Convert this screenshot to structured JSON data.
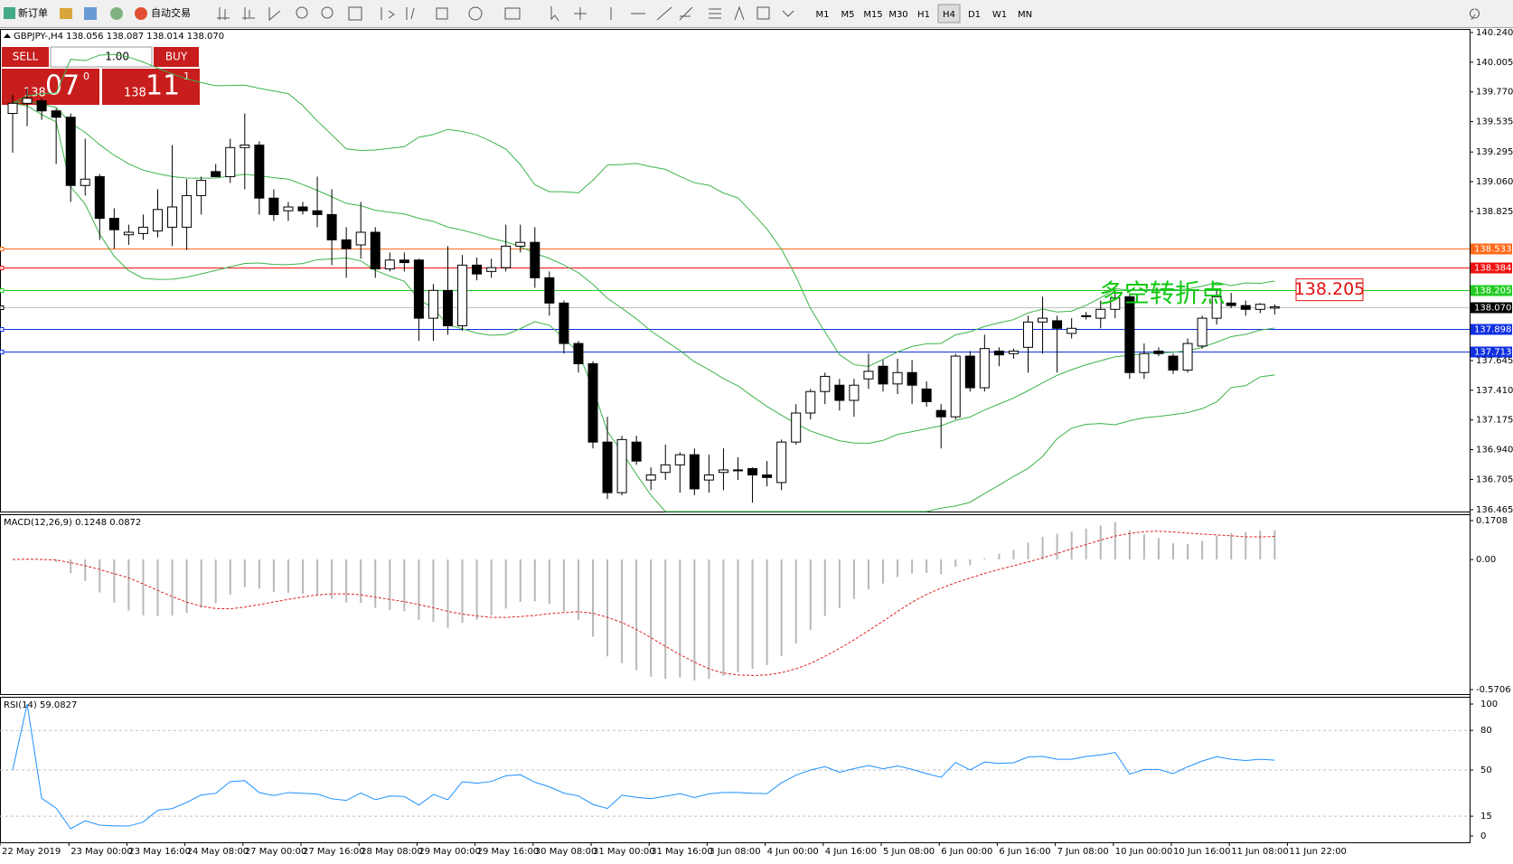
{
  "toolbar": {
    "new_order": "新订单",
    "auto_trading": "自动交易",
    "timeframes": [
      "M1",
      "M5",
      "M15",
      "M30",
      "H1",
      "H4",
      "D1",
      "W1",
      "MN"
    ],
    "active_timeframe": "H4"
  },
  "chart": {
    "symbol_header": "GBPJPY-,H4  138.056 138.087 138.014 138.070",
    "trade_panel": {
      "sell": "SELL",
      "buy": "BUY",
      "lots": "1.00",
      "bid_big": "138",
      "bid_main": "07",
      "bid_small": "0",
      "ask_big": "138",
      "ask_main": "11",
      "ask_small": "1"
    },
    "ylim": [
      136.465,
      140.24
    ],
    "yticks": [
      {
        "value": 140.24,
        "label": "140.240"
      },
      {
        "value": 140.005,
        "label": "140.005"
      },
      {
        "value": 139.77,
        "label": "139.770"
      },
      {
        "value": 139.535,
        "label": "139.535"
      },
      {
        "value": 139.295,
        "label": "139.295"
      },
      {
        "value": 139.06,
        "label": "139.060"
      },
      {
        "value": 138.825,
        "label": "138.825"
      },
      {
        "value": 137.645,
        "label": "137.645"
      },
      {
        "value": 137.41,
        "label": "137.410"
      },
      {
        "value": 137.175,
        "label": "137.175"
      },
      {
        "value": 136.94,
        "label": "136.940"
      },
      {
        "value": 136.705,
        "label": "136.705"
      },
      {
        "value": 136.465,
        "label": "136.465"
      }
    ],
    "levels": [
      {
        "value": 138.533,
        "label": "138.533",
        "color": "#ff6a1a"
      },
      {
        "value": 138.384,
        "label": "138.384",
        "color": "#ee1111"
      },
      {
        "value": 138.205,
        "label": "138.205",
        "color": "#22cc22"
      },
      {
        "value": 138.07,
        "label": "138.070",
        "color": "#000000"
      },
      {
        "value": 137.898,
        "label": "137.898",
        "color": "#1030e0"
      },
      {
        "value": 137.713,
        "label": "137.713",
        "color": "#1030e0"
      }
    ],
    "annotation": "多空转折点",
    "annotation_price": {
      "value": 138.205,
      "label": "138.205"
    },
    "candles": [
      [
        139.6,
        139.75,
        139.29,
        139.68
      ],
      [
        139.68,
        139.8,
        139.5,
        139.72
      ],
      [
        139.7,
        139.72,
        139.55,
        139.62
      ],
      [
        139.62,
        139.64,
        139.2,
        139.57
      ],
      [
        139.57,
        139.6,
        138.9,
        139.03
      ],
      [
        139.03,
        139.4,
        138.95,
        139.08
      ],
      [
        139.1,
        139.12,
        138.6,
        138.77
      ],
      [
        138.77,
        138.85,
        138.53,
        138.68
      ],
      [
        138.64,
        138.72,
        138.56,
        138.66
      ],
      [
        138.65,
        138.8,
        138.6,
        138.7
      ],
      [
        138.67,
        139.0,
        138.62,
        138.84
      ],
      [
        138.7,
        139.35,
        138.55,
        138.86
      ],
      [
        138.7,
        139.08,
        138.52,
        138.95
      ],
      [
        138.95,
        139.1,
        138.8,
        139.07
      ],
      [
        139.14,
        139.2,
        139.1,
        139.1
      ],
      [
        139.1,
        139.4,
        139.05,
        139.33
      ],
      [
        139.33,
        139.6,
        139.0,
        139.35
      ],
      [
        139.35,
        139.38,
        138.8,
        138.93
      ],
      [
        138.93,
        139.0,
        138.75,
        138.8
      ],
      [
        138.83,
        138.9,
        138.75,
        138.86
      ],
      [
        138.86,
        138.9,
        138.8,
        138.83
      ],
      [
        138.83,
        139.1,
        138.7,
        138.8
      ],
      [
        138.8,
        139.0,
        138.4,
        138.6
      ],
      [
        138.6,
        138.7,
        138.3,
        138.53
      ],
      [
        138.56,
        138.9,
        138.45,
        138.66
      ],
      [
        138.66,
        138.7,
        138.3,
        138.37
      ],
      [
        138.37,
        138.5,
        138.35,
        138.44
      ],
      [
        138.44,
        138.5,
        138.35,
        138.42
      ],
      [
        138.44,
        138.45,
        137.8,
        137.98
      ],
      [
        137.98,
        138.25,
        137.8,
        138.2
      ],
      [
        138.2,
        138.55,
        137.85,
        137.92
      ],
      [
        137.92,
        138.48,
        137.88,
        138.4
      ],
      [
        138.4,
        138.46,
        138.28,
        138.33
      ],
      [
        138.35,
        138.45,
        138.3,
        138.38
      ],
      [
        138.38,
        138.72,
        138.35,
        138.55
      ],
      [
        138.55,
        138.72,
        138.5,
        138.58
      ],
      [
        138.58,
        138.7,
        138.22,
        138.3
      ],
      [
        138.3,
        138.35,
        138.0,
        138.1
      ],
      [
        138.1,
        138.12,
        137.7,
        137.78
      ],
      [
        137.78,
        137.8,
        137.55,
        137.62
      ],
      [
        137.62,
        137.64,
        136.95,
        137.0
      ],
      [
        137.0,
        137.2,
        136.55,
        136.6
      ],
      [
        136.6,
        137.05,
        136.58,
        137.02
      ],
      [
        137.0,
        137.05,
        136.82,
        136.85
      ],
      [
        136.7,
        136.8,
        136.62,
        136.74
      ],
      [
        136.76,
        136.98,
        136.7,
        136.82
      ],
      [
        136.82,
        136.92,
        136.6,
        136.9
      ],
      [
        136.9,
        136.95,
        136.58,
        136.63
      ],
      [
        136.7,
        136.9,
        136.6,
        136.74
      ],
      [
        136.76,
        136.95,
        136.62,
        136.78
      ],
      [
        136.78,
        136.88,
        136.7,
        136.78
      ],
      [
        136.79,
        136.8,
        136.52,
        136.74
      ],
      [
        136.74,
        136.85,
        136.65,
        136.72
      ],
      [
        136.68,
        137.02,
        136.62,
        137.0
      ],
      [
        137.0,
        137.3,
        136.98,
        137.23
      ],
      [
        137.23,
        137.42,
        137.18,
        137.4
      ],
      [
        137.4,
        137.55,
        137.3,
        137.52
      ],
      [
        137.45,
        137.5,
        137.25,
        137.33
      ],
      [
        137.33,
        137.5,
        137.2,
        137.45
      ],
      [
        137.5,
        137.7,
        137.42,
        137.56
      ],
      [
        137.6,
        137.65,
        137.4,
        137.46
      ],
      [
        137.46,
        137.66,
        137.38,
        137.55
      ],
      [
        137.55,
        137.65,
        137.3,
        137.45
      ],
      [
        137.42,
        137.48,
        137.28,
        137.32
      ],
      [
        137.25,
        137.3,
        136.95,
        137.2
      ],
      [
        137.2,
        137.7,
        137.18,
        137.68
      ],
      [
        137.68,
        137.72,
        137.4,
        137.43
      ],
      [
        137.43,
        137.85,
        137.4,
        137.74
      ],
      [
        137.72,
        137.75,
        137.6,
        137.69
      ],
      [
        137.7,
        137.74,
        137.66,
        137.72
      ],
      [
        137.75,
        138.0,
        137.55,
        137.95
      ],
      [
        137.95,
        138.15,
        137.7,
        137.98
      ],
      [
        137.96,
        138.0,
        137.55,
        137.9
      ],
      [
        137.86,
        137.98,
        137.82,
        137.9
      ],
      [
        138.0,
        138.03,
        137.97,
        138.0
      ],
      [
        137.98,
        138.12,
        137.9,
        138.05
      ],
      [
        138.05,
        138.2,
        137.98,
        138.14
      ],
      [
        138.15,
        138.17,
        137.5,
        137.55
      ],
      [
        137.55,
        137.78,
        137.5,
        137.7
      ],
      [
        137.72,
        137.75,
        137.68,
        137.7
      ],
      [
        137.68,
        137.7,
        137.54,
        137.57
      ],
      [
        137.57,
        137.82,
        137.55,
        137.78
      ],
      [
        137.76,
        138.0,
        137.74,
        137.98
      ],
      [
        137.98,
        138.2,
        137.93,
        138.15
      ],
      [
        138.1,
        138.18,
        138.06,
        138.08
      ],
      [
        138.08,
        138.12,
        138.0,
        138.05
      ],
      [
        138.05,
        138.1,
        138.02,
        138.09
      ],
      [
        138.06,
        138.09,
        138.01,
        138.07
      ]
    ]
  },
  "macd": {
    "label": "MACD(12,26,9) 0.1248 0.0872",
    "ylim": [
      -0.5706,
      0.1708
    ],
    "yticks": [
      {
        "value": 0.1708,
        "label": "0.1708"
      },
      {
        "value": 0,
        "label": "0.00"
      },
      {
        "value": -0.5706,
        "label": "-0.5706"
      }
    ]
  },
  "rsi": {
    "label": "RSI(14) 59.0827",
    "ylim": [
      0,
      100
    ],
    "yticks": [
      100,
      80,
      50,
      15,
      0
    ]
  },
  "time_labels": [
    "22 May 2019",
    "23 May 00:00",
    "23 May 16:00",
    "24 May 08:00",
    "27 May 00:00",
    "27 May 16:00",
    "28 May 08:00",
    "29 May 00:00",
    "29 May 16:00",
    "30 May 08:00",
    "31 May 00:00",
    "31 May 16:00",
    "3 Jun 08:00",
    "4 Jun 00:00",
    "4 Jun 16:00",
    "5 Jun 08:00",
    "6 Jun 00:00",
    "6 Jun 16:00",
    "7 Jun 08:00",
    "10 Jun 00:00",
    "10 Jun 16:00",
    "11 Jun 08:00",
    "11 Jun 22:00"
  ]
}
